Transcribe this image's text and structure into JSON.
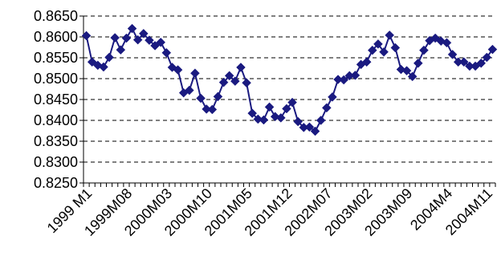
{
  "chart_data": {
    "type": "line",
    "title": "",
    "xlabel": "",
    "ylabel": "",
    "ylim": [
      0.825,
      0.865
    ],
    "y_ticks": [
      "0.8250",
      "0.8300",
      "0.8350",
      "0.8400",
      "0.8450",
      "0.8500",
      "0.8550",
      "0.8600",
      "0.8650"
    ],
    "x_tick_labels": [
      {
        "label": "1999 M1",
        "index": 0
      },
      {
        "label": "1999M08",
        "index": 7
      },
      {
        "label": "2000M03",
        "index": 14
      },
      {
        "label": "2000M10",
        "index": 21
      },
      {
        "label": "2001M05",
        "index": 28
      },
      {
        "label": "2001M12",
        "index": 35
      },
      {
        "label": "2002M07",
        "index": 42
      },
      {
        "label": "2003M02",
        "index": 49
      },
      {
        "label": "2003M09",
        "index": 56
      },
      {
        "label": "2004M4",
        "index": 63
      },
      {
        "label": "2004M11",
        "index": 70
      }
    ],
    "grid": "horizontal dashed",
    "legend": "none",
    "series": [
      {
        "color": "#1a1a80",
        "marker": "diamond",
        "values": [
          0.8603,
          0.854,
          0.8532,
          0.8528,
          0.8551,
          0.8598,
          0.8569,
          0.8597,
          0.862,
          0.8593,
          0.8608,
          0.8592,
          0.8579,
          0.8587,
          0.8562,
          0.8527,
          0.8521,
          0.8466,
          0.8472,
          0.8513,
          0.8453,
          0.8427,
          0.8426,
          0.8457,
          0.8491,
          0.8507,
          0.8494,
          0.8527,
          0.849,
          0.8417,
          0.8403,
          0.8401,
          0.8432,
          0.8409,
          0.8406,
          0.8428,
          0.8443,
          0.8397,
          0.8383,
          0.8384,
          0.8374,
          0.84,
          0.843,
          0.8456,
          0.8498,
          0.8497,
          0.8507,
          0.8508,
          0.8534,
          0.854,
          0.8568,
          0.8583,
          0.8564,
          0.8604,
          0.8574,
          0.8522,
          0.8519,
          0.8505,
          0.8537,
          0.8568,
          0.8591,
          0.8597,
          0.859,
          0.8586,
          0.8558,
          0.854,
          0.854,
          0.853,
          0.853,
          0.8537,
          0.8551,
          0.857
        ]
      }
    ]
  }
}
